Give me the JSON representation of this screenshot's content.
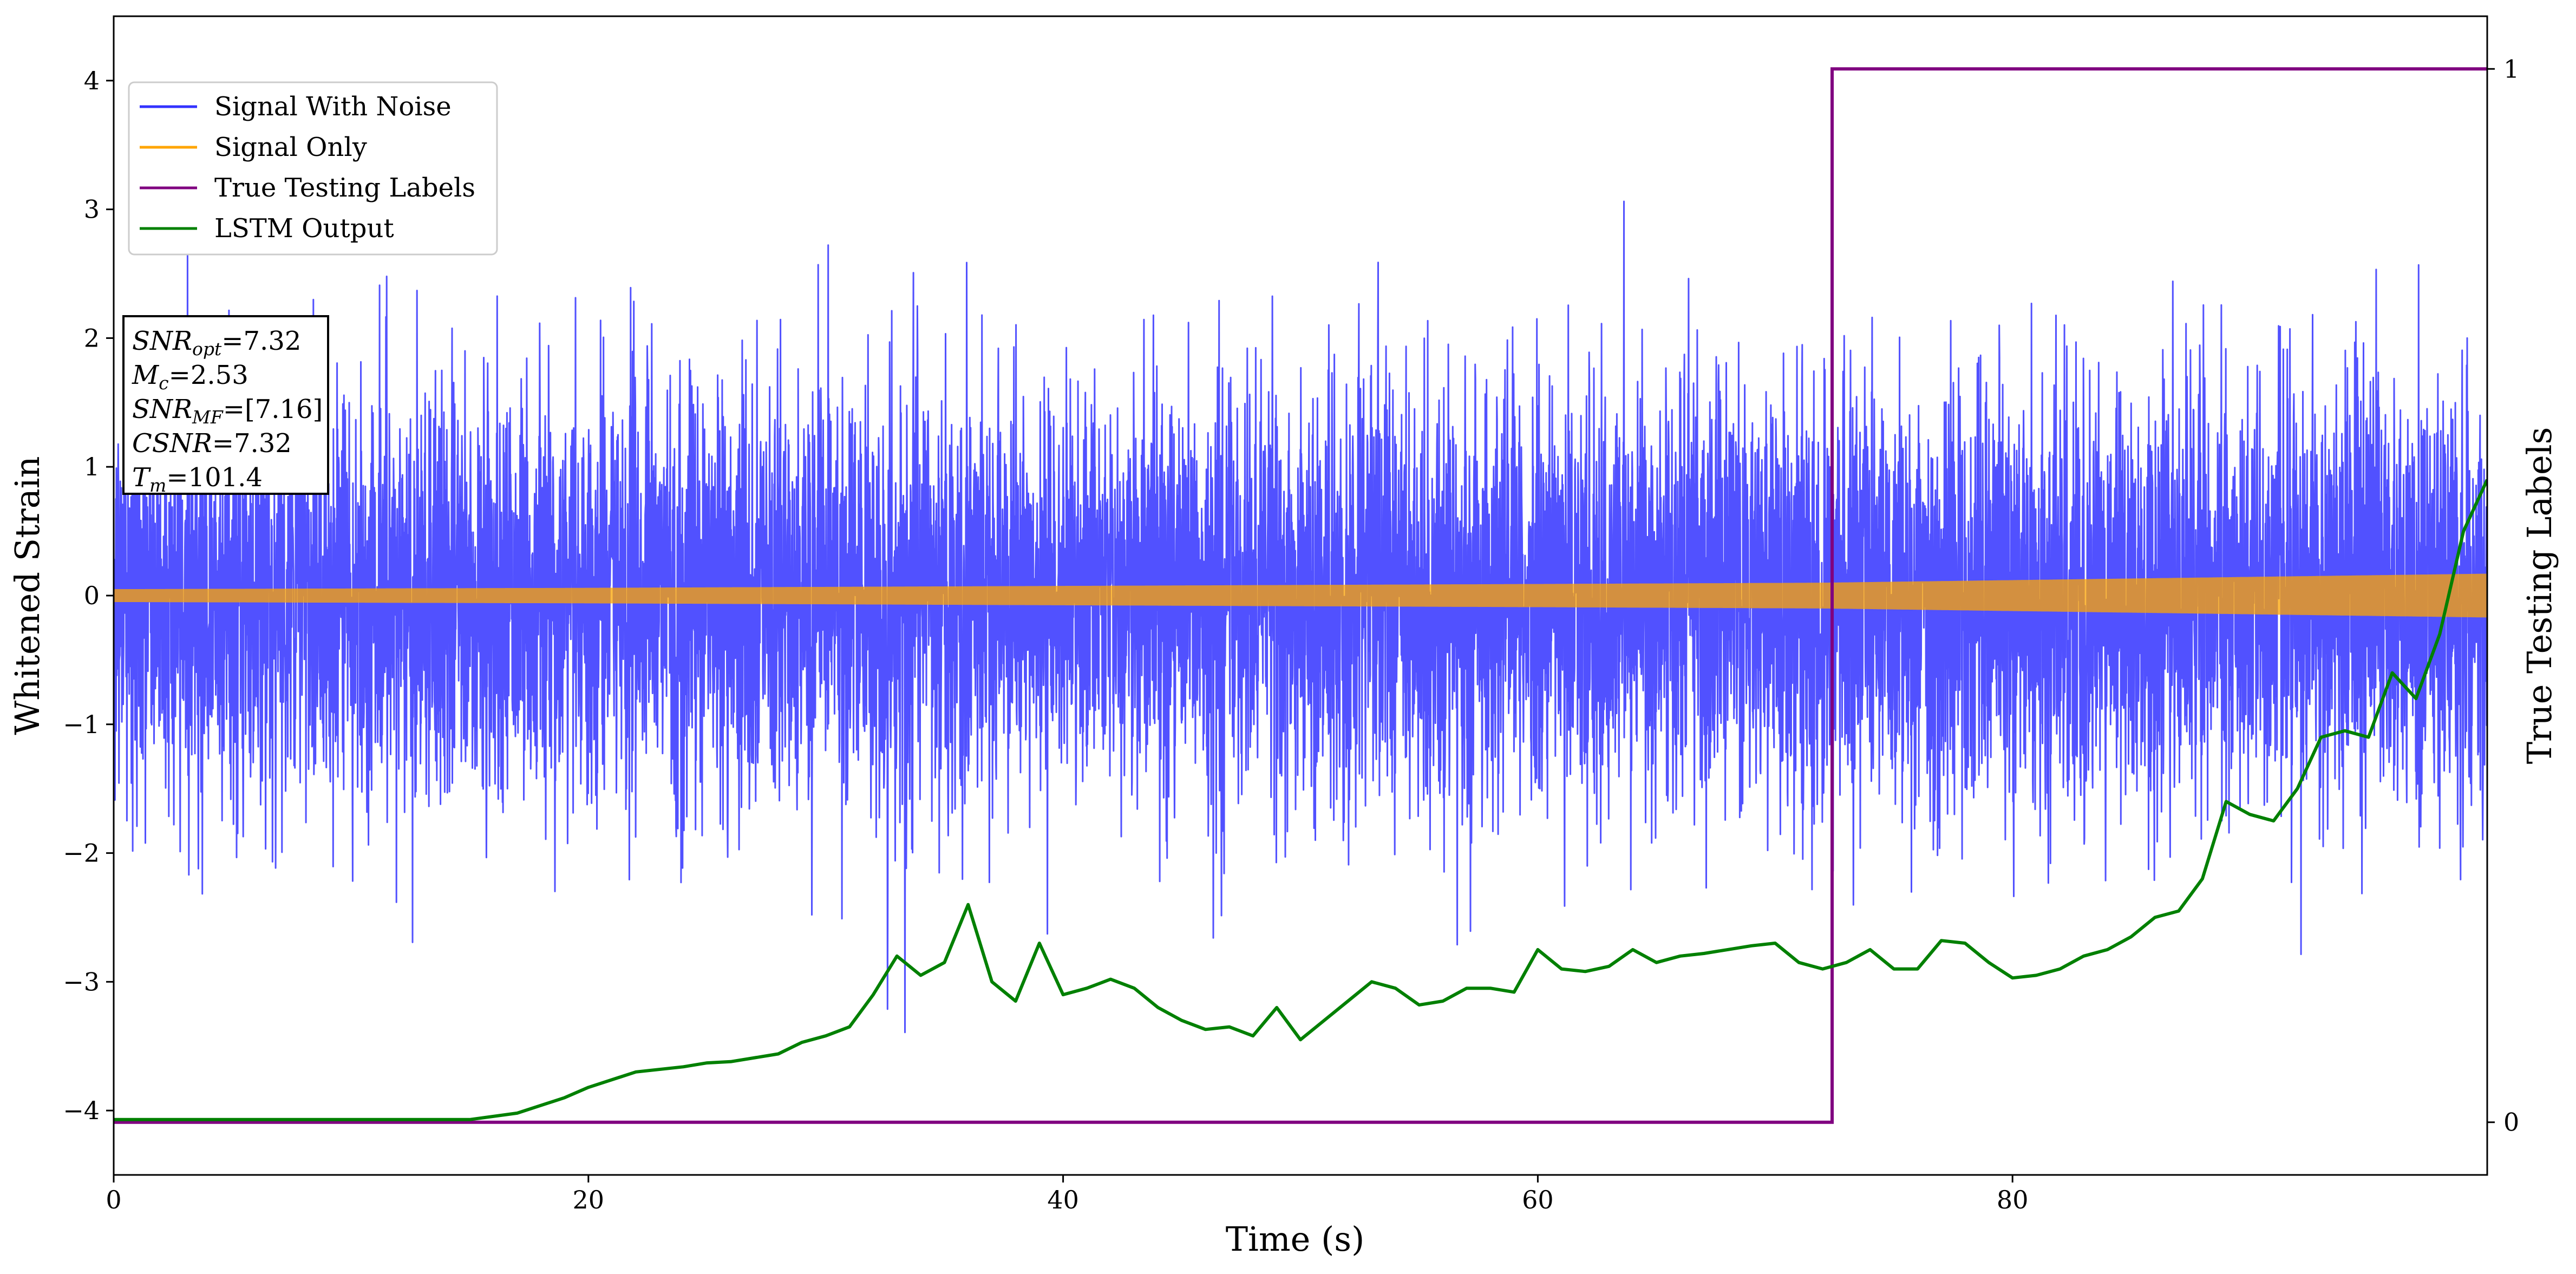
{
  "chart_data": {
    "type": "line",
    "xlabel": "Time (s)",
    "ylabel": "Whitened Strain",
    "ylabel_right": "True Testing Labels",
    "xlim": [
      0,
      100
    ],
    "ylim": [
      -4.5,
      4.5
    ],
    "ylim_right": [
      -0.05,
      1.05
    ],
    "x_ticks": [
      0,
      20,
      40,
      60,
      80
    ],
    "y_ticks": [
      -4,
      -3,
      -2,
      -1,
      0,
      1,
      2,
      3,
      4
    ],
    "y_ticks_right": [
      0,
      1
    ],
    "grid": false,
    "legend_position": "upper-left",
    "series": [
      {
        "name": "Signal With Noise",
        "color": "#3333ff",
        "axis": "left",
        "noise_std": 0.82,
        "noise_max_abs": 3.45
      },
      {
        "name": "Signal Only",
        "color": "#ffa500",
        "axis": "left",
        "envelope": {
          "x": [
            0,
            20,
            40,
            60,
            72,
            80,
            100
          ],
          "amplitude": [
            0.05,
            0.06,
            0.075,
            0.09,
            0.1,
            0.12,
            0.17
          ]
        }
      },
      {
        "name": "True Testing Labels",
        "color": "#800080",
        "axis": "right",
        "x": [
          0,
          72.4,
          72.4,
          100
        ],
        "y": [
          0,
          0,
          1,
          1
        ]
      },
      {
        "name": "LSTM Output",
        "color": "#008000",
        "axis": "left",
        "x": [
          0,
          15,
          17,
          19,
          20,
          22,
          24,
          25,
          26,
          28,
          29,
          30,
          31,
          32,
          33,
          34,
          35,
          36,
          37,
          38,
          39,
          40,
          41,
          42,
          43,
          44,
          45,
          46,
          47,
          48,
          49,
          50,
          51,
          52,
          53,
          54,
          55,
          56,
          57,
          58,
          59,
          60,
          61,
          62,
          63,
          64,
          65,
          66,
          67,
          68,
          69,
          70,
          71,
          72,
          73,
          74,
          75,
          76,
          77,
          78,
          79,
          80,
          81,
          82,
          83,
          84,
          85,
          86,
          87,
          88,
          89,
          90,
          91,
          92,
          93,
          94,
          95,
          96,
          97,
          98,
          99,
          100
        ],
        "y": [
          -4.07,
          -4.07,
          -4.02,
          -3.9,
          -3.82,
          -3.7,
          -3.66,
          -3.63,
          -3.62,
          -3.56,
          -3.47,
          -3.42,
          -3.35,
          -3.1,
          -2.8,
          -2.95,
          -2.85,
          -2.4,
          -3.0,
          -3.15,
          -2.7,
          -3.1,
          -3.05,
          -2.98,
          -3.05,
          -3.2,
          -3.3,
          -3.37,
          -3.35,
          -3.42,
          -3.2,
          -3.45,
          -3.3,
          -3.15,
          -3.0,
          -3.05,
          -3.18,
          -3.15,
          -3.05,
          -3.05,
          -3.08,
          -2.75,
          -2.9,
          -2.92,
          -2.88,
          -2.75,
          -2.85,
          -2.8,
          -2.78,
          -2.75,
          -2.72,
          -2.7,
          -2.85,
          -2.9,
          -2.85,
          -2.75,
          -2.9,
          -2.9,
          -2.68,
          -2.7,
          -2.85,
          -2.97,
          -2.95,
          -2.9,
          -2.8,
          -2.75,
          -2.65,
          -2.5,
          -2.45,
          -2.2,
          -1.6,
          -1.7,
          -1.75,
          -1.5,
          -1.1,
          -1.05,
          -1.1,
          -0.6,
          -0.8,
          -0.3,
          0.5,
          0.9
        ]
      }
    ],
    "annotations": [
      "SNRopt=7.32",
      "Mc=2.53",
      "SNRMF=[7.16]",
      "CSNR=7.32",
      "Tm=101.4"
    ]
  },
  "annotation_box": {
    "line1_sym": "SNR",
    "line1_sub": "opt",
    "line1_val": "=7.32",
    "line2_sym": "M",
    "line2_sub": "c",
    "line2_val": "=2.53",
    "line3_sym": "SNR",
    "line3_sub": "MF",
    "line3_val": "=[7.16]",
    "line4_sym": "CSNR",
    "line4_val": "=7.32",
    "line5_sym": "T",
    "line5_sub": "m",
    "line5_val": "=101.4"
  }
}
